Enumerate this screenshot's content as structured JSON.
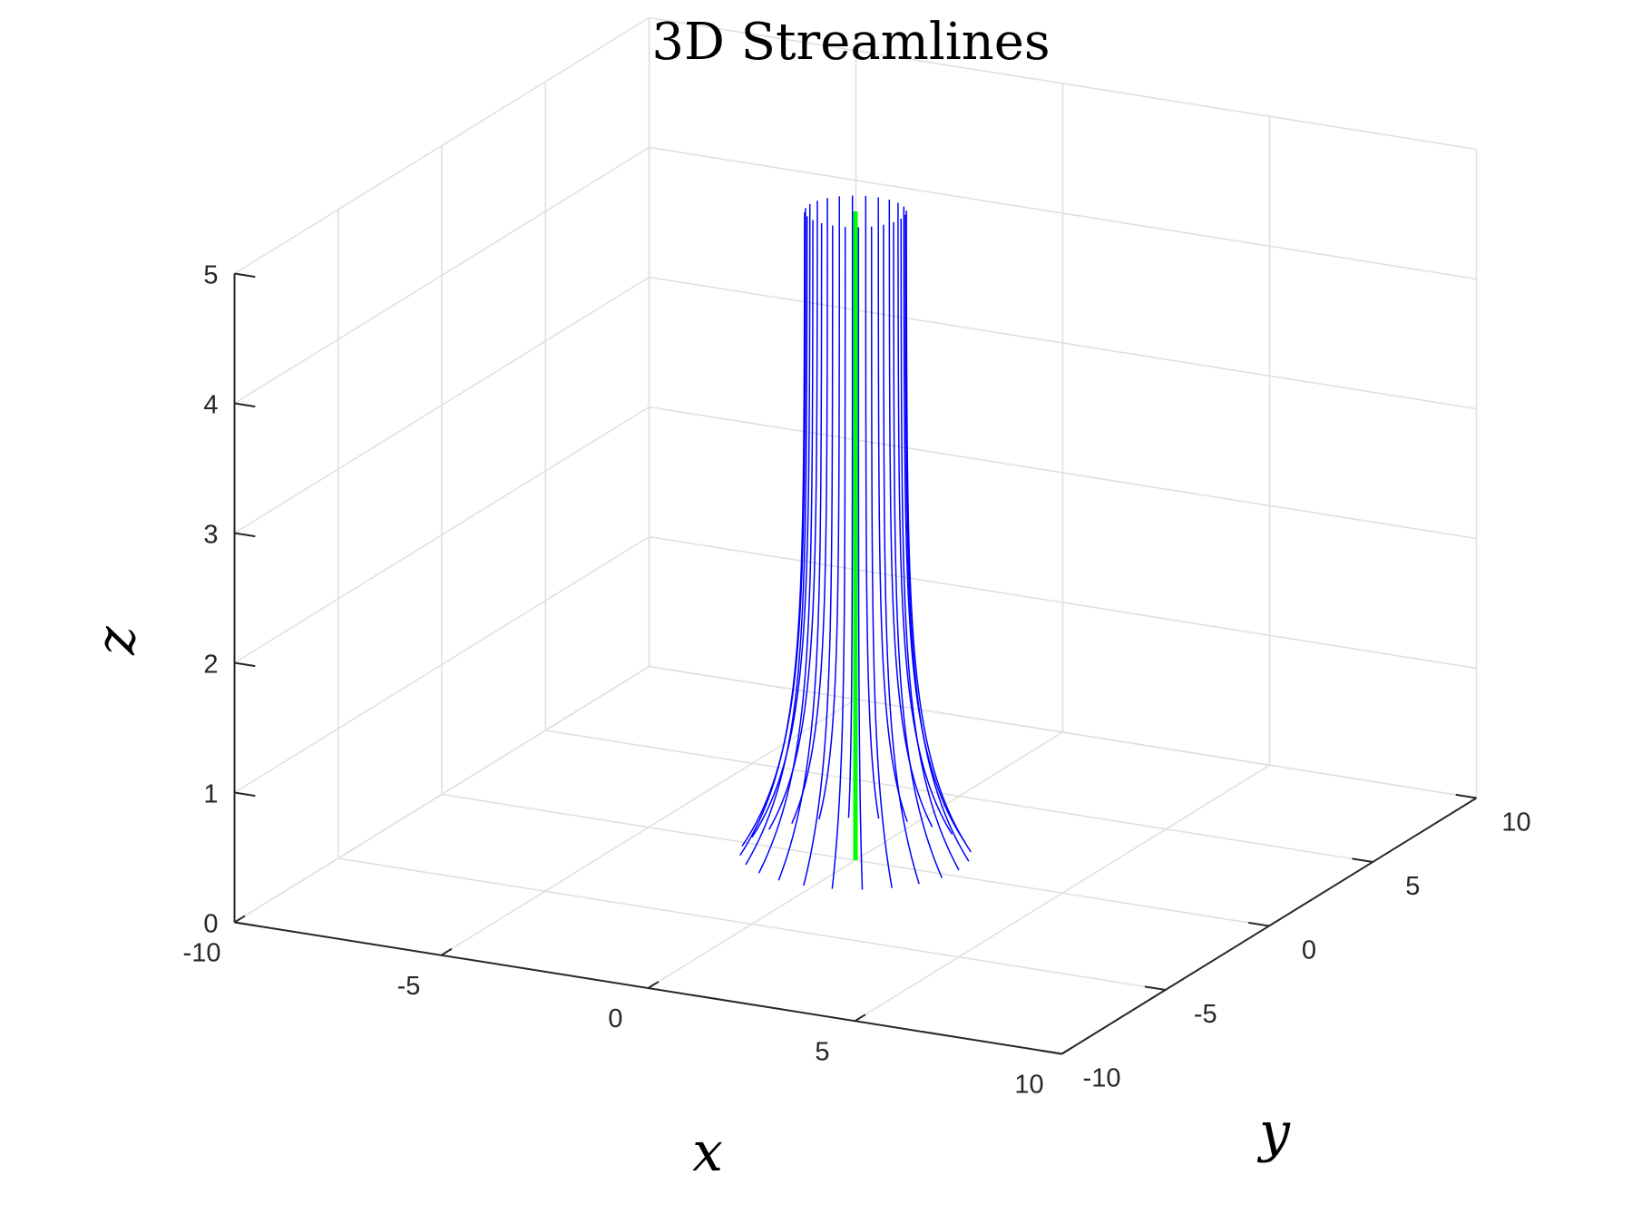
{
  "chart_data": {
    "type": "line",
    "plot_kind": "3d-streamlines",
    "title": "3D Streamlines",
    "xlabel": "x",
    "ylabel": "y",
    "zlabel": "z",
    "xlim": [
      -10,
      10
    ],
    "ylim": [
      -10,
      10
    ],
    "zlim": [
      0,
      5
    ],
    "x_ticks": [
      -10,
      -5,
      0,
      5,
      10
    ],
    "y_ticks": [
      -10,
      -5,
      0,
      5,
      10
    ],
    "z_ticks": [
      0,
      1,
      2,
      3,
      4,
      5
    ],
    "x_tick_labels": [
      "-10",
      "-5",
      "0",
      "5",
      "10"
    ],
    "y_tick_labels": [
      "-10",
      "-5",
      "0",
      "5",
      "10"
    ],
    "z_tick_labels": [
      "0",
      "1",
      "2",
      "3",
      "4",
      "5"
    ],
    "grid": true,
    "streamlines": {
      "color": "#0000ff",
      "count": 24,
      "start_radius": 2.5,
      "end_radius": 1.1,
      "z_start": 0.05,
      "z_end": 5.0
    },
    "center_line": {
      "color": "#00ff00",
      "x": 0,
      "y": 0,
      "z_range": [
        0,
        5
      ]
    }
  }
}
